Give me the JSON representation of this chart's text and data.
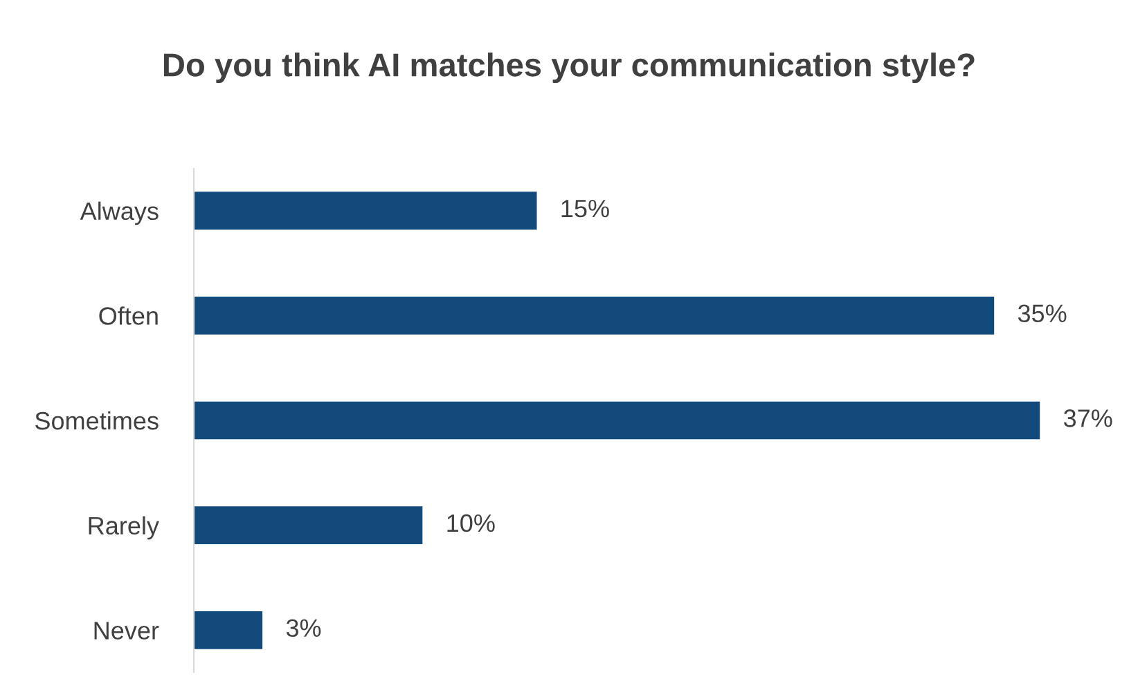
{
  "chart_data": {
    "type": "bar",
    "orientation": "horizontal",
    "title": "Do you think AI matches your communication style?",
    "categories": [
      "Always",
      "Often",
      "Sometimes",
      "Rarely",
      "Never"
    ],
    "values": [
      15,
      35,
      37,
      10,
      3
    ],
    "value_labels": [
      "15%",
      "35%",
      "37%",
      "10%",
      "3%"
    ],
    "color": "#124a7c",
    "grid": false,
    "legend": false
  }
}
